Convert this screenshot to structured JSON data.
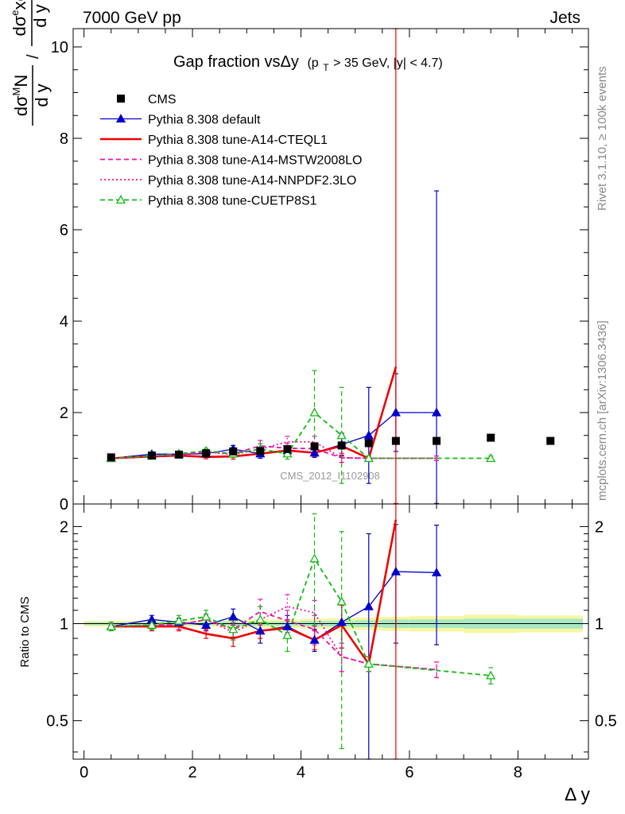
{
  "chart_data": [
    {
      "type": "line",
      "panel": "main",
      "header_left": "7000 GeV pp",
      "header_right": "Jets",
      "title_main": "Gap fraction vsΔy",
      "title_cut": "(p",
      "title_cut_sub": "T",
      "title_cut_rest": " > 35 GeV, |y| < 4.7)",
      "ylabel_num_main": "dσ",
      "ylabel_num_sup": "M",
      "ylabel_num_end": "N",
      "ylabel_mid_main": "dσ",
      "ylabel_mid_sup": "e",
      "ylabel_mid_end": "xc",
      "ylabel_den": "d y",
      "ylabel_slash": "/",
      "side_label_top": "Rivet 3.1.10, ≥ 100k events",
      "side_label_bottom": "mcplots.cern.ch [arXiv:1306.3436]",
      "watermark": "CMS_2012_I1102908",
      "xlim": [
        -0.2,
        9.3
      ],
      "ylim": [
        0,
        10.4
      ],
      "yticks": [
        0,
        2,
        4,
        6,
        8,
        10
      ],
      "ytick_labels": [
        "0",
        "2",
        "4",
        "6",
        "8",
        "10"
      ],
      "legend_placement": "top-left",
      "data": {
        "name": "CMS",
        "color": "#000000",
        "x": [
          0.5,
          1.25,
          1.75,
          2.25,
          2.75,
          3.25,
          3.75,
          4.25,
          4.75,
          5.25,
          5.75,
          6.5,
          7.5,
          8.6
        ],
        "y": [
          1.02,
          1.06,
          1.08,
          1.11,
          1.15,
          1.16,
          1.2,
          1.26,
          1.28,
          1.33,
          1.38,
          1.38,
          1.45,
          1.38
        ]
      },
      "series": [
        {
          "name": "Pythia 8.308 default",
          "color": "#0000cc",
          "style": "solid",
          "marker": "triangle-filled",
          "x": [
            0.5,
            1.25,
            1.75,
            2.25,
            2.75,
            3.25,
            3.75,
            4.25,
            4.75,
            5.25,
            5.75,
            6.5
          ],
          "y": [
            1.0,
            1.09,
            1.09,
            1.1,
            1.2,
            1.1,
            1.17,
            1.12,
            1.3,
            1.5,
            2.0,
            2.0
          ],
          "err": [
            0.03,
            0.04,
            0.04,
            0.05,
            0.08,
            0.1,
            0.1,
            0.1,
            0.25,
            1.05,
            0.85,
            4.85
          ]
        },
        {
          "name": "Pythia 8.308 tune-A14-CTEQL1",
          "color": "#ee0000",
          "style": "solid",
          "marker": "none",
          "x": [
            0.5,
            1.25,
            1.75,
            2.25,
            2.75,
            3.25,
            3.75,
            4.25,
            4.75,
            5.25,
            5.75
          ],
          "y": [
            1.0,
            1.04,
            1.06,
            1.03,
            1.04,
            1.1,
            1.17,
            1.12,
            1.27,
            1.0,
            3.0
          ],
          "err": [
            0.03,
            0.03,
            0.04,
            0.04,
            0.06,
            0.06,
            0.08,
            0.08,
            0.2,
            0.05,
            7.6
          ]
        },
        {
          "name": "Pythia 8.308 tune-A14-MSTW2008LO",
          "color": "#ee11aa",
          "style": "dashed",
          "marker": "none",
          "x": [
            0.5,
            1.25,
            1.75,
            2.25,
            2.75,
            3.25,
            3.75,
            4.25,
            4.75,
            5.25,
            6.5
          ],
          "y": [
            1.0,
            1.05,
            1.07,
            1.14,
            1.1,
            1.27,
            1.22,
            1.21,
            1.01,
            1.0,
            1.0
          ],
          "err": [
            0.03,
            0.03,
            0.04,
            0.05,
            0.06,
            0.12,
            0.1,
            0.12,
            0.1,
            0.05,
            0.05
          ]
        },
        {
          "name": "Pythia 8.308 tune-A14-NNPDF2.3LO",
          "color": "#ee11aa",
          "style": "dotted",
          "marker": "none",
          "x": [
            0.5,
            1.25,
            1.75,
            2.25,
            2.75,
            3.25,
            3.75,
            4.25,
            4.75,
            5.25,
            6.5
          ],
          "y": [
            1.0,
            1.05,
            1.07,
            1.14,
            1.08,
            1.2,
            1.36,
            1.36,
            1.01,
            1.0,
            1.0
          ],
          "err": [
            0.03,
            0.03,
            0.04,
            0.05,
            0.06,
            0.12,
            0.12,
            0.12,
            0.1,
            0.05,
            0.05
          ]
        },
        {
          "name": "Pythia 8.308 tune-CUETP8S1",
          "color": "#11bb11",
          "style": "dashed",
          "marker": "triangle-open",
          "x": [
            0.5,
            1.25,
            1.75,
            2.25,
            2.75,
            3.25,
            3.75,
            4.25,
            4.75,
            5.25,
            7.5
          ],
          "y": [
            1.0,
            1.05,
            1.1,
            1.16,
            1.1,
            1.2,
            1.1,
            2.0,
            1.5,
            1.0,
            1.0
          ],
          "err": [
            0.04,
            0.04,
            0.05,
            0.06,
            0.08,
            0.12,
            0.12,
            0.92,
            1.05,
            0.05,
            0.05
          ]
        }
      ]
    },
    {
      "type": "line",
      "panel": "ratio",
      "ylabel": "Ratio to CMS",
      "xlabel": "Δ y",
      "xlim": [
        -0.2,
        9.3
      ],
      "ylim": [
        0.38,
        2.35
      ],
      "xticks": [
        0,
        2,
        4,
        6,
        8
      ],
      "xtick_labels": [
        "0",
        "2",
        "4",
        "6",
        "8"
      ],
      "yticks": [
        0.5,
        1,
        2
      ],
      "ytick_labels": [
        "0.5",
        "1",
        "2"
      ],
      "band": {
        "x_edges": [
          0.0,
          1.0,
          1.5,
          2.0,
          2.5,
          3.0,
          3.5,
          4.0,
          4.5,
          5.0,
          5.5,
          6.0,
          7.0,
          8.0,
          9.2
        ],
        "inner": [
          0.01,
          0.01,
          0.01,
          0.01,
          0.015,
          0.015,
          0.015,
          0.02,
          0.02,
          0.025,
          0.03,
          0.03,
          0.035,
          0.035
        ],
        "outer": [
          0.02,
          0.02,
          0.02,
          0.02,
          0.025,
          0.03,
          0.03,
          0.035,
          0.04,
          0.045,
          0.05,
          0.055,
          0.065,
          0.06
        ]
      },
      "series": [
        {
          "name": "Pythia 8.308 default",
          "color": "#0000cc",
          "style": "solid",
          "marker": "triangle-filled",
          "x": [
            0.5,
            1.25,
            1.75,
            2.25,
            2.75,
            3.25,
            3.75,
            4.25,
            4.75,
            5.25,
            5.75,
            6.5
          ],
          "y": [
            0.98,
            1.03,
            1.01,
            0.99,
            1.05,
            0.95,
            0.98,
            0.89,
            1.01,
            1.13,
            1.45,
            1.44
          ],
          "err": [
            0.02,
            0.03,
            0.03,
            0.04,
            0.06,
            0.08,
            0.08,
            0.07,
            0.17,
            0.77,
            0.58,
            0.58
          ]
        },
        {
          "name": "Pythia 8.308 tune-A14-CTEQL1",
          "color": "#ee0000",
          "style": "solid",
          "marker": "none",
          "x": [
            0.5,
            1.25,
            1.75,
            2.25,
            2.75,
            3.25,
            3.75,
            4.25,
            4.75,
            5.25,
            5.75
          ],
          "y": [
            0.98,
            0.98,
            0.98,
            0.93,
            0.9,
            0.95,
            0.97,
            0.89,
            0.99,
            0.75,
            2.1
          ],
          "err": [
            0.02,
            0.03,
            0.03,
            0.03,
            0.05,
            0.05,
            0.06,
            0.06,
            0.15,
            0.04,
            3.0
          ]
        },
        {
          "name": "Pythia 8.308 tune-A14-MSTW2008LO",
          "color": "#ee11aa",
          "style": "dashed",
          "marker": "none",
          "x": [
            0.5,
            1.25,
            1.75,
            2.25,
            2.75,
            3.25,
            3.75,
            4.25,
            4.75,
            5.25,
            6.5
          ],
          "y": [
            0.98,
            0.99,
            0.99,
            1.03,
            0.96,
            1.09,
            1.02,
            0.96,
            0.79,
            0.75,
            0.72
          ],
          "err": [
            0.02,
            0.03,
            0.03,
            0.04,
            0.05,
            0.1,
            0.08,
            0.1,
            0.08,
            0.04,
            0.04
          ]
        },
        {
          "name": "Pythia 8.308 tune-A14-NNPDF2.3LO",
          "color": "#ee11aa",
          "style": "dotted",
          "marker": "none",
          "x": [
            0.5,
            1.25,
            1.75,
            2.25,
            2.75,
            3.25,
            3.75,
            4.25,
            4.75,
            5.25,
            6.5
          ],
          "y": [
            0.98,
            0.99,
            0.99,
            1.03,
            0.94,
            1.03,
            1.13,
            1.08,
            0.79,
            0.75,
            0.72
          ],
          "err": [
            0.02,
            0.03,
            0.03,
            0.04,
            0.05,
            0.1,
            0.1,
            0.1,
            0.08,
            0.04,
            0.04
          ]
        },
        {
          "name": "Pythia 8.308 tune-CUETP8S1",
          "color": "#11bb11",
          "style": "dashed",
          "marker": "triangle-open",
          "x": [
            0.5,
            1.25,
            1.75,
            2.25,
            2.75,
            3.25,
            3.75,
            4.25,
            4.75,
            5.25,
            7.5
          ],
          "y": [
            0.98,
            0.99,
            1.02,
            1.05,
            0.96,
            1.03,
            0.92,
            1.59,
            1.17,
            0.75,
            0.69
          ],
          "err": [
            0.03,
            0.03,
            0.04,
            0.05,
            0.07,
            0.1,
            0.1,
            0.6,
            0.76,
            0.04,
            0.04
          ]
        }
      ]
    }
  ]
}
